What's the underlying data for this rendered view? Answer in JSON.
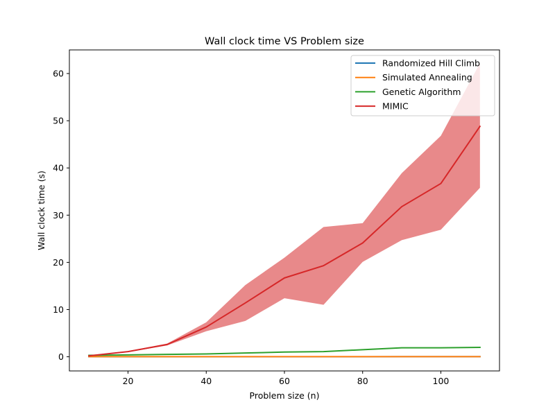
{
  "chart_data": {
    "type": "line",
    "title": "Wall clock time VS Problem size",
    "xlabel": "Problem size (n)",
    "ylabel": "Wall clock time (s)",
    "xlim": [
      5,
      115
    ],
    "ylim": [
      -3,
      65
    ],
    "xticks": [
      20,
      40,
      60,
      80,
      100
    ],
    "yticks": [
      0,
      10,
      20,
      30,
      40,
      50,
      60
    ],
    "grid": false,
    "legend_position": "top-right",
    "x": [
      10,
      20,
      30,
      40,
      50,
      60,
      70,
      80,
      90,
      100,
      110
    ],
    "series": [
      {
        "name": "Randomized Hill Climb",
        "color": "#1f77b4",
        "values": [
          0.01,
          0.01,
          0.01,
          0.01,
          0.01,
          0.01,
          0.01,
          0.01,
          0.02,
          0.02,
          0.02
        ]
      },
      {
        "name": "Simulated Annealing",
        "color": "#ff7f0e",
        "values": [
          0.02,
          0.02,
          0.02,
          0.02,
          0.02,
          0.03,
          0.03,
          0.03,
          0.03,
          0.03,
          0.03
        ]
      },
      {
        "name": "Genetic Algorithm",
        "color": "#2ca02c",
        "values": [
          0.3,
          0.4,
          0.5,
          0.6,
          0.8,
          1.0,
          1.1,
          1.5,
          1.9,
          1.9,
          2.0
        ]
      },
      {
        "name": "MIMIC",
        "color": "#d62728",
        "values": [
          0.2,
          1.1,
          2.6,
          6.3,
          11.4,
          16.7,
          19.3,
          24.1,
          31.8,
          36.7,
          48.8
        ],
        "band_lower": [
          0.1,
          1.0,
          2.4,
          5.4,
          7.6,
          12.4,
          11.0,
          20.1,
          24.7,
          26.9,
          35.8
        ],
        "band_upper": [
          0.3,
          1.2,
          2.8,
          7.3,
          15.2,
          21.0,
          27.5,
          28.3,
          38.9,
          46.8,
          62.2
        ],
        "band_color": "#e8898a"
      }
    ]
  }
}
